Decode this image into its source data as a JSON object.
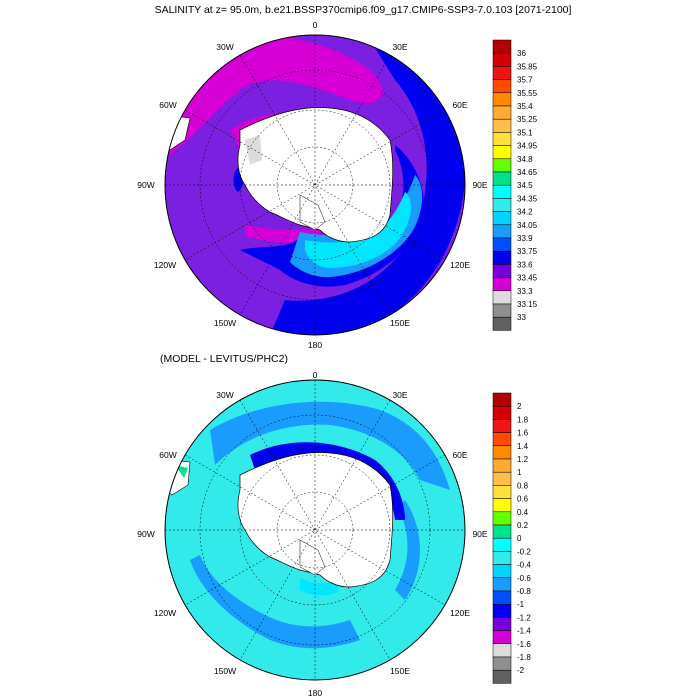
{
  "title": "SALINITY at z=  95.0m, b.e21.BSSP370cmip6.f09_g17.CMIP6-SSP3-7.0.103 [2071-2100]",
  "subtitle": "(MODEL - LEVITUS/PHC2)",
  "lon_labels": {
    "top": "0",
    "top_right": "30E",
    "right_upper": "60E",
    "right": "90E",
    "right_lower": "120E",
    "bottom_right": "150E",
    "bottom": "180",
    "bottom_left": "150W",
    "left_lower": "120W",
    "left": "90W",
    "left_upper": "60W",
    "top_left": "30W"
  },
  "colorbar1": {
    "labels": [
      "36",
      "35.85",
      "35.7",
      "35.55",
      "35.4",
      "35.25",
      "35.1",
      "34.95",
      "34.8",
      "34.65",
      "34.5",
      "34.35",
      "34.2",
      "34.05",
      "33.9",
      "33.75",
      "33.6",
      "33.45",
      "33.3",
      "33.15",
      "33"
    ],
    "colors": [
      "#b40000",
      "#d60000",
      "#f01414",
      "#ff4a00",
      "#ff8a00",
      "#ffaa33",
      "#ffbe4a",
      "#ffdf3a",
      "#ffff00",
      "#66ff00",
      "#00e28c",
      "#00ffff",
      "#33eaea",
      "#00d4ff",
      "#1a9cff",
      "#0050ff",
      "#0000ee",
      "#7700dd",
      "#d600d6",
      "#dcdcdc",
      "#8f8f8f",
      "#606060"
    ]
  },
  "colorbar2": {
    "labels": [
      "2",
      "1.8",
      "1.6",
      "1.4",
      "1.2",
      "1",
      "0.8",
      "0.6",
      "0.4",
      "0.2",
      "0",
      "-0.2",
      "-0.4",
      "-0.6",
      "-0.8",
      "-1",
      "-1.2",
      "-1.4",
      "-1.6",
      "-1.8",
      "-2"
    ],
    "colors": [
      "#b40000",
      "#d60000",
      "#f01414",
      "#ff4a00",
      "#ff8a00",
      "#ffaa33",
      "#ffbe4a",
      "#ffdf3a",
      "#ffff00",
      "#66ff00",
      "#00e28c",
      "#00ffff",
      "#33eaea",
      "#00d4ff",
      "#1a9cff",
      "#0050ff",
      "#0000ee",
      "#7700dd",
      "#d600d6",
      "#dcdcdc",
      "#8f8f8f",
      "#606060"
    ]
  },
  "map_colors": {
    "purple": "#7b1fe0",
    "magenta": "#d600d6",
    "blue": "#0000ee",
    "cyan": "#00e6ff",
    "light_cyan": "#33eaea",
    "mid_blue": "#1a9cff",
    "land": "#ffffff",
    "shelf_grey": "#dcdcdc"
  }
}
